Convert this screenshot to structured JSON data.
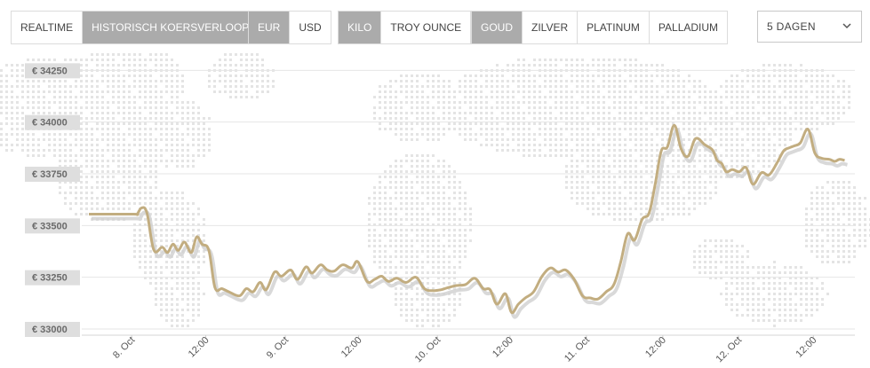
{
  "toolbar": {
    "mode": [
      {
        "label": "REALTIME",
        "active": false
      },
      {
        "label": "HISTORISCH KOERSVERLOOP",
        "active": true
      }
    ],
    "currency": [
      {
        "label": "EUR",
        "active": true
      },
      {
        "label": "USD",
        "active": false
      }
    ],
    "unit": [
      {
        "label": "KILO",
        "active": true
      },
      {
        "label": "TROY OUNCE",
        "active": false
      }
    ],
    "metal": [
      {
        "label": "GOUD",
        "active": true
      },
      {
        "label": "ZILVER",
        "active": false
      },
      {
        "label": "PLATINUM",
        "active": false
      },
      {
        "label": "PALLADIUM",
        "active": false
      }
    ],
    "period": {
      "label": "5 DAGEN"
    }
  },
  "colors": {
    "line": "#c2ad80",
    "shadow": "#cfcfcf",
    "active_button": "#ababab",
    "map_dots": "#e4e4e4"
  },
  "chart_data": {
    "type": "line",
    "title": "",
    "ylim": [
      32970,
      34290
    ],
    "xlim": [
      0,
      100
    ],
    "y_ticks": [
      {
        "value": 34250,
        "label": "€ 34250"
      },
      {
        "value": 34000,
        "label": "€ 34000"
      },
      {
        "value": 33750,
        "label": "€ 33750"
      },
      {
        "value": 33500,
        "label": "€ 33500"
      },
      {
        "value": 33250,
        "label": "€ 33250"
      },
      {
        "value": 33000,
        "label": "€ 33000"
      }
    ],
    "x_ticks": [
      {
        "pos": 5.6,
        "label": "8. Oct"
      },
      {
        "pos": 15.3,
        "label": "12:00"
      },
      {
        "pos": 25.7,
        "label": "9. Oct"
      },
      {
        "pos": 35.3,
        "label": "12:00"
      },
      {
        "pos": 45.6,
        "label": "10. Oct"
      },
      {
        "pos": 55.1,
        "label": "12:00"
      },
      {
        "pos": 65.1,
        "label": "11. Oct"
      },
      {
        "pos": 75.1,
        "label": "12:00"
      },
      {
        "pos": 85.0,
        "label": "12. Oct"
      },
      {
        "pos": 94.8,
        "label": "12:00"
      }
    ],
    "series": [
      {
        "x": [
          0,
          5.8,
          6.3,
          6.9,
          7.6,
          8.5,
          9.6,
          10.3,
          11.0,
          11.7,
          12.5,
          13.4,
          14.1,
          14.8,
          15.7,
          16.5,
          17.4,
          18.3,
          19.7,
          20.6,
          21.5,
          22.4,
          23.2,
          24.3,
          25.2,
          26.4,
          27.3,
          28.4,
          29.2,
          30.3,
          31.2,
          32.1,
          33.2,
          34.4,
          35.2,
          36.4,
          37.4,
          38.3,
          39.2,
          40.3,
          41.5,
          42.8,
          43.9,
          45.0,
          46.1,
          47.0,
          48.1,
          49.3,
          50.5,
          51.6,
          52.5,
          53.4,
          54.5,
          55.3,
          56.2,
          57.1,
          58.2,
          59.3,
          60.4,
          61.4,
          62.4,
          63.5,
          64.6,
          65.6,
          66.6,
          67.7,
          68.7,
          69.6,
          70.5,
          71.4,
          72.4,
          73.3,
          74.1,
          74.9,
          75.7,
          76.6,
          77.5,
          78.4,
          79.4,
          80.6,
          81.6,
          82.2,
          82.8,
          83.4,
          84.2,
          85.1,
          86.0,
          86.9,
          88.0,
          89.0,
          90.0,
          90.9,
          91.6,
          92.3,
          93.1,
          94.1,
          95.0,
          95.9,
          96.9,
          97.6,
          98.2,
          98.9
        ],
        "values": [
          33555,
          33555,
          33555,
          33585,
          33560,
          33382,
          33395,
          33370,
          33410,
          33380,
          33420,
          33370,
          33445,
          33410,
          33380,
          33200,
          33195,
          33180,
          33160,
          33195,
          33180,
          33225,
          33190,
          33275,
          33255,
          33285,
          33240,
          33300,
          33270,
          33310,
          33285,
          33280,
          33310,
          33295,
          33325,
          33230,
          33240,
          33255,
          33230,
          33245,
          33225,
          33250,
          33195,
          33185,
          33190,
          33200,
          33210,
          33215,
          33245,
          33195,
          33190,
          33120,
          33170,
          33080,
          33120,
          33150,
          33180,
          33255,
          33295,
          33275,
          33285,
          33240,
          33160,
          33150,
          33145,
          33180,
          33215,
          33325,
          33460,
          33430,
          33530,
          33560,
          33700,
          33860,
          33880,
          33985,
          33870,
          33835,
          33920,
          33890,
          33865,
          33815,
          33800,
          33760,
          33770,
          33760,
          33780,
          33700,
          33755,
          33745,
          33800,
          33860,
          33875,
          33885,
          33900,
          33965,
          33850,
          33825,
          33820,
          33810,
          33820,
          33815
        ]
      }
    ]
  }
}
